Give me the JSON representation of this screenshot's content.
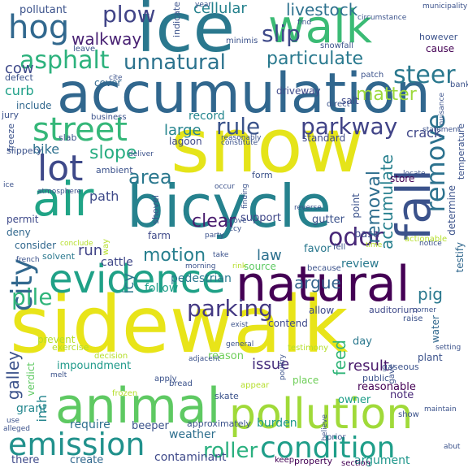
{
  "words": [
    {
      "text": "sidewalk",
      "color": "#e8e419"
    },
    {
      "text": "snow",
      "color": "#e5e419"
    },
    {
      "text": "accumulation",
      "color": "#31678e"
    },
    {
      "text": "bicycle",
      "color": "#26828e"
    },
    {
      "text": "ice",
      "color": "#2a788e"
    },
    {
      "text": "natural",
      "color": "#440154"
    },
    {
      "text": "animal",
      "color": "#5ec962"
    },
    {
      "text": "pollution",
      "color": "#a0da39"
    },
    {
      "text": "evidence",
      "color": "#1fa187"
    },
    {
      "text": "walk",
      "color": "#3bbb75"
    },
    {
      "text": "air",
      "color": "#20a486"
    },
    {
      "text": "fall",
      "color": "#3b528b"
    },
    {
      "text": "street",
      "color": "#35b779"
    },
    {
      "text": "lot",
      "color": "#3e4989"
    },
    {
      "text": "emission",
      "color": "#21918c"
    },
    {
      "text": "condition",
      "color": "#1f9e89"
    },
    {
      "text": "city",
      "color": "#31688e"
    },
    {
      "text": "hog",
      "color": "#31688e"
    },
    {
      "text": "parkway",
      "color": "#404387"
    },
    {
      "text": "rule",
      "color": "#3a538b"
    },
    {
      "text": "remove",
      "color": "#2c728e"
    },
    {
      "text": "steer",
      "color": "#2a788e"
    },
    {
      "text": "asphalt",
      "color": "#2db27d"
    },
    {
      "text": "plow",
      "color": "#414487"
    },
    {
      "text": "slip",
      "color": "#3e4989"
    },
    {
      "text": "odor",
      "color": "#482878"
    },
    {
      "text": "parking",
      "color": "#443983"
    },
    {
      "text": "pile",
      "color": "#31b57b"
    },
    {
      "text": "area",
      "color": "#2a788e"
    },
    {
      "text": "motion",
      "color": "#277f8e"
    },
    {
      "text": "unnatural",
      "color": "#2c738e"
    },
    {
      "text": "particulate",
      "color": "#29798e"
    },
    {
      "text": "slope",
      "color": "#27ad81"
    },
    {
      "text": "removal",
      "color": "#2e6e8e"
    },
    {
      "text": "accumulate",
      "color": "#27808e"
    },
    {
      "text": "matter",
      "color": "#9dd93b"
    },
    {
      "text": "clear",
      "color": "#481b6d"
    },
    {
      "text": "walkway",
      "color": "#482173"
    },
    {
      "text": "cellular",
      "color": "#26828e"
    },
    {
      "text": "livestock",
      "color": "#2d718e"
    },
    {
      "text": "large",
      "color": "#25848e"
    },
    {
      "text": "roller",
      "color": "#2ab07f"
    },
    {
      "text": "argue",
      "color": "#33638d"
    },
    {
      "text": "run",
      "color": "#414487"
    },
    {
      "text": "law",
      "color": "#2d708e"
    },
    {
      "text": "feed",
      "color": "#32b67a"
    },
    {
      "text": "pig",
      "color": "#2a788e"
    },
    {
      "text": "path",
      "color": "#3e4989"
    },
    {
      "text": "cow",
      "color": "#3e4989"
    },
    {
      "text": "curb",
      "color": "#1fa088"
    },
    {
      "text": "issue",
      "color": "#472f7d"
    },
    {
      "text": "result",
      "color": "#48186a"
    },
    {
      "text": "galley",
      "color": "#3b528b"
    },
    {
      "text": "inch",
      "color": "#25858e"
    },
    {
      "text": "icy",
      "color": "#2a788e"
    },
    {
      "text": "bike",
      "color": "#2d708e"
    },
    {
      "text": "crack",
      "color": "#3f4788"
    },
    {
      "text": "record",
      "color": "#24868e"
    },
    {
      "text": "review",
      "color": "#29798e"
    },
    {
      "text": "grant",
      "color": "#24878e"
    },
    {
      "text": "burden",
      "color": "#1f988b"
    },
    {
      "text": "argument",
      "color": "#1f978b"
    },
    {
      "text": "contaminant",
      "color": "#3e4989"
    },
    {
      "text": "create",
      "color": "#31688e"
    },
    {
      "text": "there",
      "color": "#3e4989"
    },
    {
      "text": "require",
      "color": "#2e6f8e"
    },
    {
      "text": "beeper",
      "color": "#3b528b"
    },
    {
      "text": "weather",
      "color": "#2e6f8e"
    },
    {
      "text": "impoundment",
      "color": "#1f9a8a"
    },
    {
      "text": "pedestrian",
      "color": "#2a788e"
    },
    {
      "text": "follow",
      "color": "#1f9e89"
    },
    {
      "text": "cattle",
      "color": "#3f4788"
    },
    {
      "text": "store",
      "color": "#440154"
    },
    {
      "text": "support",
      "color": "#3f4788"
    },
    {
      "text": "favor",
      "color": "#2a788e"
    },
    {
      "text": "gutter",
      "color": "#3b528b"
    },
    {
      "text": "point",
      "color": "#3b528b"
    },
    {
      "text": "base",
      "color": "#3e4989"
    },
    {
      "text": "day",
      "color": "#2a788e"
    },
    {
      "text": "place",
      "color": "#6ece58"
    },
    {
      "text": "reason",
      "color": "#6ece58"
    },
    {
      "text": "note",
      "color": "#482878"
    },
    {
      "text": "owner",
      "color": "#1f9e89"
    },
    {
      "text": "reasonable",
      "color": "#440154"
    },
    {
      "text": "standard",
      "color": "#3e4989"
    },
    {
      "text": "driveway",
      "color": "#3e4989"
    },
    {
      "text": "salt",
      "color": "#3e4989"
    },
    {
      "text": "include",
      "color": "#31688e"
    },
    {
      "text": "cover",
      "color": "#31688e"
    },
    {
      "text": "pollutant",
      "color": "#3b528b"
    },
    {
      "text": "however",
      "color": "#3b528b"
    },
    {
      "text": "cause",
      "color": "#440154"
    },
    {
      "text": "defect",
      "color": "#3b528b"
    },
    {
      "text": "determine",
      "color": "#3b528b"
    },
    {
      "text": "temperature",
      "color": "#3b528b"
    },
    {
      "text": "permit",
      "color": "#3e4989"
    },
    {
      "text": "consider",
      "color": "#31688e"
    },
    {
      "text": "deny",
      "color": "#31688e"
    },
    {
      "text": "solvent",
      "color": "#2a788e"
    },
    {
      "text": "farm",
      "color": "#3e4989"
    },
    {
      "text": "auditorium",
      "color": "#3e4989"
    },
    {
      "text": "water",
      "color": "#31688e"
    },
    {
      "text": "testify",
      "color": "#31688e"
    },
    {
      "text": "verdict",
      "color": "#5ec962"
    },
    {
      "text": "allow",
      "color": "#3e4989"
    },
    {
      "text": "contend",
      "color": "#3e4989"
    },
    {
      "text": "day",
      "color": "#2a788e"
    },
    {
      "text": "public",
      "color": "#3b528b"
    },
    {
      "text": "gaseous",
      "color": "#3b528b"
    },
    {
      "text": "plant",
      "color": "#3b528b"
    },
    {
      "text": "skate",
      "color": "#3b528b"
    },
    {
      "text": "indicate",
      "color": "#3b528b"
    },
    {
      "text": "jury",
      "color": "#3b528b"
    },
    {
      "text": "slab",
      "color": "#3b528b"
    },
    {
      "text": "form",
      "color": "#3b528b"
    },
    {
      "text": "source",
      "color": "#5ec962"
    },
    {
      "text": "lagoon",
      "color": "#3e4989"
    },
    {
      "text": "shovel",
      "color": "#3b528b"
    },
    {
      "text": "business",
      "color": "#3b528b"
    },
    {
      "text": "freeze",
      "color": "#3b528b"
    },
    {
      "text": "slippery",
      "color": "#3b528b"
    },
    {
      "text": "ambient",
      "color": "#3b528b"
    },
    {
      "text": "prevent",
      "color": "#b5de2b"
    },
    {
      "text": "exercise",
      "color": "#b5de2b"
    },
    {
      "text": "decision",
      "color": "#b5de2b"
    },
    {
      "text": "appear",
      "color": "#b5de2b"
    },
    {
      "text": "keep",
      "color": "#440154"
    },
    {
      "text": "property",
      "color": "#440154"
    },
    {
      "text": "section",
      "color": "#440154"
    },
    {
      "text": "approximately",
      "color": "#3b528b"
    },
    {
      "text": "certain",
      "color": "#3b528b"
    },
    {
      "text": "cite",
      "color": "#3b528b"
    },
    {
      "text": "bank",
      "color": "#3b528b"
    },
    {
      "text": "patch",
      "color": "#3b528b"
    },
    {
      "text": "direct",
      "color": "#3b528b"
    },
    {
      "text": "leave",
      "color": "#3b528b"
    },
    {
      "text": "minimis",
      "color": "#3b528b"
    },
    {
      "text": "snowfall",
      "color": "#3b528b"
    },
    {
      "text": "circumstance",
      "color": "#3b528b"
    },
    {
      "text": "general",
      "color": "#3b528b"
    },
    {
      "text": "french",
      "color": "#3b528b"
    },
    {
      "text": "conclude",
      "color": "#b5de2b"
    },
    {
      "text": "way",
      "color": "#b5de2b"
    },
    {
      "text": "ccy",
      "color": "#3b528b"
    },
    {
      "text": "prove",
      "color": "#3b528b"
    },
    {
      "text": "fell",
      "color": "#3b528b"
    },
    {
      "text": "because",
      "color": "#3b528b"
    },
    {
      "text": "actionable",
      "color": "#3b528b"
    },
    {
      "text": "time",
      "color": "#b5de2b"
    },
    {
      "text": "setting",
      "color": "#b5de2b"
    },
    {
      "text": "gave",
      "color": "#3b528b"
    },
    {
      "text": "reverse",
      "color": "#3b528b"
    },
    {
      "text": "take",
      "color": "#3b528b"
    },
    {
      "text": "rink",
      "color": "#3b528b"
    },
    {
      "text": "morning",
      "color": "#b5de2b"
    },
    {
      "text": "exist",
      "color": "#3b528b"
    },
    {
      "text": "testimony",
      "color": "#3b528b"
    },
    {
      "text": "raise",
      "color": "#b5de2b"
    },
    {
      "text": "show",
      "color": "#3b528b"
    },
    {
      "text": "prior",
      "color": "#3b528b"
    },
    {
      "text": "believe",
      "color": "#3b528b"
    },
    {
      "text": "frozen",
      "color": "#3b528b"
    },
    {
      "text": "bread",
      "color": "#b5de2b"
    },
    {
      "text": "apply",
      "color": "#3b528b"
    },
    {
      "text": "use",
      "color": "#3b528b"
    },
    {
      "text": "alleged",
      "color": "#3b528b"
    },
    {
      "text": "melt",
      "color": "#3b528b"
    },
    {
      "text": "atmosphere",
      "color": "#3b528b"
    },
    {
      "text": "year",
      "color": "#3b528b"
    },
    {
      "text": "municipality",
      "color": "#3b528b"
    },
    {
      "text": "nuisance",
      "color": "#3b528b"
    },
    {
      "text": "statement",
      "color": "#3b528b"
    },
    {
      "text": "finding",
      "color": "#3b528b"
    },
    {
      "text": "constitute",
      "color": "#3b528b"
    },
    {
      "text": "reasonably",
      "color": "#3b528b"
    },
    {
      "text": "deliver",
      "color": "#3b528b"
    },
    {
      "text": "locate",
      "color": "#3b528b"
    },
    {
      "text": "occur",
      "color": "#3b528b"
    },
    {
      "text": "party",
      "color": "#3b528b"
    },
    {
      "text": "poultry",
      "color": "#3b528b"
    },
    {
      "text": "stand",
      "color": "#3b528b"
    },
    {
      "text": "ice",
      "color": "#3b528b"
    },
    {
      "text": "corner",
      "color": "#3b528b"
    },
    {
      "text": "notice",
      "color": "#3b528b"
    },
    {
      "text": "abut",
      "color": "#3b528b"
    },
    {
      "text": "adjacent",
      "color": "#3b528b"
    },
    {
      "text": "maintain",
      "color": "#3b528b"
    },
    {
      "text": "find",
      "color": "#3b528b"
    },
    {
      "text": "flow",
      "color": "#3b528b"
    }
  ]
}
